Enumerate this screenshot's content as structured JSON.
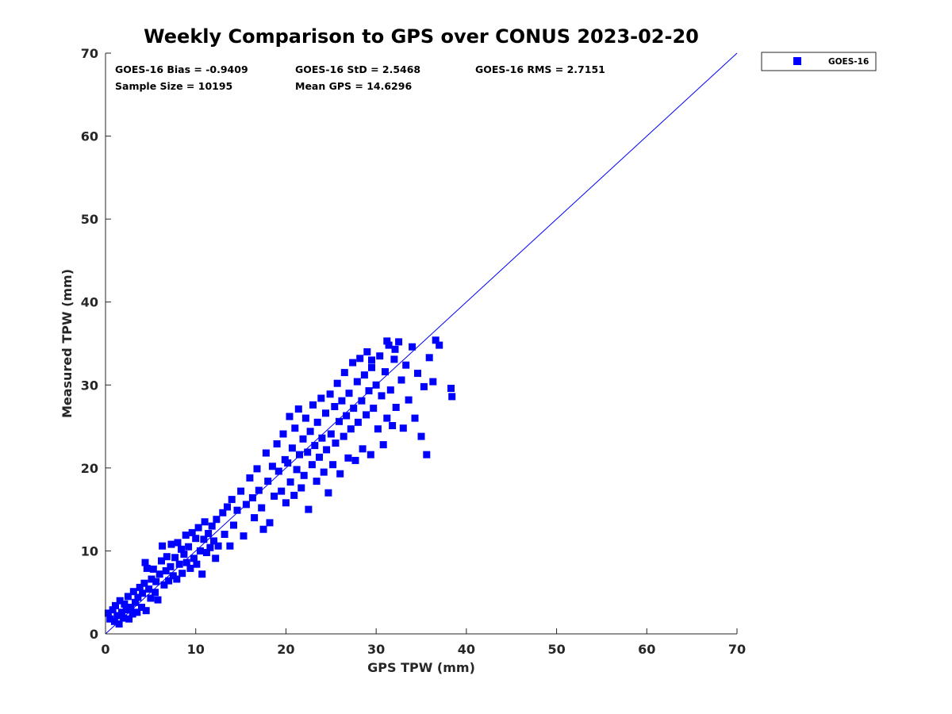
{
  "chart_data": {
    "type": "scatter",
    "title": "Weekly Comparison to GPS over CONUS 2023-02-20",
    "xlabel": "GPS TPW (mm)",
    "ylabel": "Measured TPW (mm)",
    "xlim": [
      0,
      70
    ],
    "ylim": [
      0,
      70
    ],
    "xticks": [
      "0",
      "10",
      "20",
      "30",
      "40",
      "50",
      "60",
      "70"
    ],
    "yticks": [
      "0",
      "10",
      "20",
      "30",
      "40",
      "50",
      "60",
      "70"
    ],
    "grid": false,
    "legend_position": "outside-top-right",
    "stats": [
      "GOES-16 Bias = -0.9409",
      "GOES-16 StD = 2.5468",
      "GOES-16 RMS = 2.7151",
      "Sample Size = 10195",
      "Mean GPS = 14.6296"
    ],
    "reference_line": {
      "from": [
        0,
        0
      ],
      "to": [
        70,
        70
      ],
      "color": "#0000ff"
    },
    "series": [
      {
        "name": "GOES-16",
        "marker": "square",
        "color": "#0000ff",
        "points": [
          [
            0.3,
            2.5
          ],
          [
            0.5,
            1.8
          ],
          [
            0.8,
            2.9
          ],
          [
            1.0,
            1.5
          ],
          [
            1.1,
            3.4
          ],
          [
            1.3,
            2.2
          ],
          [
            1.5,
            1.2
          ],
          [
            1.6,
            4.0
          ],
          [
            1.8,
            2.6
          ],
          [
            2.0,
            1.9
          ],
          [
            2.1,
            3.6
          ],
          [
            2.3,
            2.9
          ],
          [
            2.5,
            4.5
          ],
          [
            2.6,
            1.8
          ],
          [
            2.8,
            3.2
          ],
          [
            3.0,
            2.4
          ],
          [
            3.1,
            5.1
          ],
          [
            3.3,
            3.8
          ],
          [
            3.5,
            2.6
          ],
          [
            3.6,
            4.4
          ],
          [
            3.8,
            5.6
          ],
          [
            4.0,
            3.2
          ],
          [
            4.1,
            4.9
          ],
          [
            4.3,
            6.1
          ],
          [
            4.4,
            8.6
          ],
          [
            4.5,
            2.8
          ],
          [
            4.6,
            7.9
          ],
          [
            4.8,
            5.4
          ],
          [
            5.0,
            4.3
          ],
          [
            5.1,
            6.6
          ],
          [
            5.3,
            7.8
          ],
          [
            5.5,
            5.0
          ],
          [
            5.6,
            6.3
          ],
          [
            5.8,
            4.1
          ],
          [
            6.0,
            7.2
          ],
          [
            6.2,
            8.8
          ],
          [
            6.3,
            10.6
          ],
          [
            6.5,
            5.9
          ],
          [
            6.7,
            7.6
          ],
          [
            6.8,
            9.3
          ],
          [
            7.0,
            6.4
          ],
          [
            7.2,
            8.1
          ],
          [
            7.3,
            10.8
          ],
          [
            7.5,
            7.0
          ],
          [
            7.7,
            9.2
          ],
          [
            7.9,
            6.6
          ],
          [
            8.0,
            11.0
          ],
          [
            8.2,
            8.4
          ],
          [
            8.4,
            10.2
          ],
          [
            8.5,
            7.3
          ],
          [
            8.7,
            9.6
          ],
          [
            8.9,
            11.9
          ],
          [
            9.0,
            8.6
          ],
          [
            9.2,
            10.5
          ],
          [
            9.4,
            7.9
          ],
          [
            9.6,
            12.2
          ],
          [
            9.8,
            9.1
          ],
          [
            10.0,
            11.5
          ],
          [
            10.1,
            8.4
          ],
          [
            10.3,
            12.8
          ],
          [
            10.5,
            10.0
          ],
          [
            10.7,
            7.2
          ],
          [
            10.9,
            11.4
          ],
          [
            11.0,
            13.5
          ],
          [
            11.2,
            9.8
          ],
          [
            11.4,
            12.1
          ],
          [
            11.6,
            10.4
          ],
          [
            11.8,
            13.0
          ],
          [
            12.0,
            11.2
          ],
          [
            12.2,
            9.1
          ],
          [
            12.3,
            13.8
          ],
          [
            12.5,
            10.6
          ],
          [
            13.0,
            14.6
          ],
          [
            13.2,
            12.0
          ],
          [
            13.5,
            15.3
          ],
          [
            13.8,
            10.6
          ],
          [
            14.0,
            16.2
          ],
          [
            14.2,
            13.1
          ],
          [
            14.6,
            14.9
          ],
          [
            15.0,
            17.2
          ],
          [
            15.3,
            11.8
          ],
          [
            15.6,
            15.6
          ],
          [
            16.0,
            18.8
          ],
          [
            16.3,
            16.4
          ],
          [
            16.5,
            14.0
          ],
          [
            16.8,
            19.9
          ],
          [
            17.0,
            17.3
          ],
          [
            17.3,
            15.2
          ],
          [
            17.5,
            12.6
          ],
          [
            17.8,
            21.8
          ],
          [
            18.0,
            18.4
          ],
          [
            18.2,
            13.4
          ],
          [
            18.5,
            20.2
          ],
          [
            18.7,
            16.6
          ],
          [
            19.0,
            22.9
          ],
          [
            19.2,
            19.6
          ],
          [
            19.5,
            17.2
          ],
          [
            19.7,
            24.1
          ],
          [
            19.9,
            21.0
          ],
          [
            20.0,
            15.8
          ],
          [
            20.2,
            20.6
          ],
          [
            20.4,
            26.2
          ],
          [
            20.5,
            18.3
          ],
          [
            20.7,
            22.4
          ],
          [
            20.9,
            16.7
          ],
          [
            21.0,
            24.8
          ],
          [
            21.2,
            19.8
          ],
          [
            21.4,
            27.1
          ],
          [
            21.5,
            21.6
          ],
          [
            21.7,
            17.6
          ],
          [
            21.9,
            23.5
          ],
          [
            22.0,
            19.1
          ],
          [
            22.2,
            26.0
          ],
          [
            22.4,
            21.9
          ],
          [
            22.5,
            15.0
          ],
          [
            22.7,
            24.4
          ],
          [
            22.9,
            20.4
          ],
          [
            23.0,
            27.6
          ],
          [
            23.2,
            22.7
          ],
          [
            23.4,
            18.4
          ],
          [
            23.5,
            25.5
          ],
          [
            23.7,
            21.3
          ],
          [
            23.9,
            28.4
          ],
          [
            24.0,
            23.6
          ],
          [
            24.2,
            19.5
          ],
          [
            24.4,
            26.6
          ],
          [
            24.5,
            22.2
          ],
          [
            24.7,
            17.0
          ],
          [
            24.9,
            28.9
          ],
          [
            25.0,
            24.1
          ],
          [
            25.2,
            20.4
          ],
          [
            25.4,
            27.4
          ],
          [
            25.5,
            23.0
          ],
          [
            25.7,
            30.2
          ],
          [
            25.9,
            25.6
          ],
          [
            26.0,
            19.3
          ],
          [
            26.2,
            28.1
          ],
          [
            26.4,
            23.8
          ],
          [
            26.5,
            31.5
          ],
          [
            26.7,
            26.3
          ],
          [
            26.9,
            21.2
          ],
          [
            27.0,
            29.0
          ],
          [
            27.2,
            24.7
          ],
          [
            27.4,
            32.7
          ],
          [
            27.5,
            27.2
          ],
          [
            27.7,
            20.9
          ],
          [
            27.9,
            30.4
          ],
          [
            28.0,
            25.5
          ],
          [
            28.2,
            33.2
          ],
          [
            28.4,
            28.1
          ],
          [
            28.5,
            22.3
          ],
          [
            28.7,
            31.2
          ],
          [
            28.9,
            26.4
          ],
          [
            29.0,
            34.0
          ],
          [
            29.2,
            29.3
          ],
          [
            29.4,
            21.6
          ],
          [
            29.5,
            32.1
          ],
          [
            29.7,
            27.2
          ],
          [
            30.0,
            30.0
          ],
          [
            30.2,
            24.7
          ],
          [
            30.4,
            33.5
          ],
          [
            30.6,
            28.7
          ],
          [
            30.8,
            22.8
          ],
          [
            31.0,
            31.6
          ],
          [
            31.2,
            26.0
          ],
          [
            31.4,
            34.8
          ],
          [
            31.6,
            29.4
          ],
          [
            31.8,
            25.1
          ],
          [
            32.0,
            33.1
          ],
          [
            32.2,
            27.3
          ],
          [
            32.5,
            35.2
          ],
          [
            32.8,
            30.6
          ],
          [
            33.0,
            24.8
          ],
          [
            33.3,
            32.4
          ],
          [
            33.6,
            28.2
          ],
          [
            34.0,
            34.6
          ],
          [
            34.3,
            26.0
          ],
          [
            34.6,
            31.4
          ],
          [
            35.0,
            23.8
          ],
          [
            35.3,
            29.8
          ],
          [
            35.6,
            21.6
          ],
          [
            35.9,
            33.3
          ],
          [
            36.3,
            30.4
          ],
          [
            36.6,
            35.4
          ],
          [
            37.0,
            34.8
          ],
          [
            38.3,
            29.6
          ],
          [
            38.4,
            28.6
          ],
          [
            32.1,
            34.3
          ],
          [
            31.2,
            35.3
          ],
          [
            29.5,
            33.0
          ]
        ]
      }
    ]
  }
}
